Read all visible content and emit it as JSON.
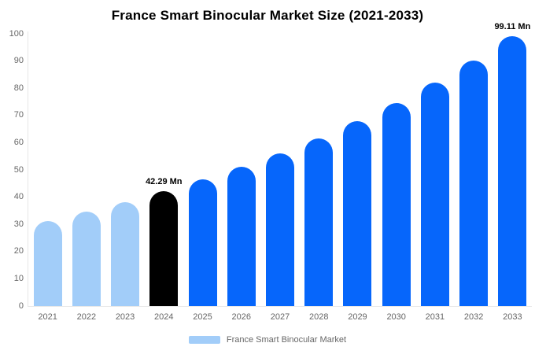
{
  "chart_data": {
    "type": "bar",
    "title": "France Smart Binocular Market Size (2021-2033)",
    "categories": [
      "2021",
      "2022",
      "2023",
      "2024",
      "2025",
      "2026",
      "2027",
      "2028",
      "2029",
      "2030",
      "2031",
      "2032",
      "2033"
    ],
    "series": [
      {
        "name": "France Smart Binocular Market",
        "values": [
          31.2,
          34.7,
          38.2,
          42.29,
          46.5,
          51.1,
          56.2,
          61.7,
          67.8,
          74.6,
          82.0,
          90.1,
          99.11
        ]
      }
    ],
    "unit": "Mn",
    "xlabel": "",
    "ylabel": "",
    "ylim": [
      0,
      100
    ],
    "yticks": [
      0,
      10,
      20,
      30,
      40,
      50,
      60,
      70,
      80,
      90,
      100
    ],
    "grid": false,
    "annotations": [
      {
        "category": "2024",
        "text": "42.29 Mn"
      },
      {
        "category": "2033",
        "text": "99.11 Mn"
      }
    ],
    "colors": {
      "historical_light_blue": "#a2cdf9",
      "highlight_black": "#000000",
      "forecast_blue": "#0666fb",
      "axis_line": "#e7e7e7",
      "tick_label": "#666666"
    },
    "bar_color_keys": [
      "historical_light_blue",
      "historical_light_blue",
      "historical_light_blue",
      "highlight_black",
      "forecast_blue",
      "forecast_blue",
      "forecast_blue",
      "forecast_blue",
      "forecast_blue",
      "forecast_blue",
      "forecast_blue",
      "forecast_blue",
      "forecast_blue"
    ],
    "legend": {
      "position": "bottom",
      "label": "France Smart Binocular Market",
      "swatch_color_key": "historical_light_blue"
    }
  }
}
